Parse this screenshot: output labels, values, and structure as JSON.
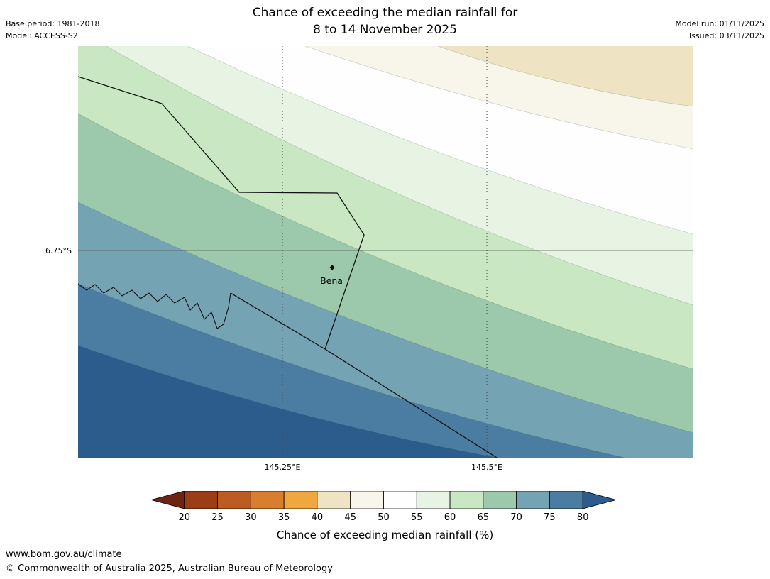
{
  "title": {
    "line1": "Chance of exceeding the median rainfall for",
    "line2": "8 to 14 November 2025"
  },
  "meta": {
    "base_period": "Base period: 1981-2018",
    "model": "Model: ACCESS-S2",
    "model_run": "Model run: 01/11/2025",
    "issued": "Issued: 03/11/2025"
  },
  "map": {
    "lat_label": "6.75°S",
    "lon_label_1": "145.25°E",
    "lon_label_2": "145.5°E",
    "place": {
      "name": "Bena"
    }
  },
  "colorbar": {
    "caption": "Chance of exceeding median rainfall (%)",
    "ticks": [
      "20",
      "25",
      "30",
      "35",
      "40",
      "45",
      "50",
      "55",
      "60",
      "65",
      "70",
      "75",
      "80"
    ],
    "segments": [
      {
        "label": "lt20",
        "color": "#6e2410"
      },
      {
        "label": "20-25",
        "color": "#9c3d16"
      },
      {
        "label": "25-30",
        "color": "#bc5b22"
      },
      {
        "label": "30-35",
        "color": "#d97e2e"
      },
      {
        "label": "35-40",
        "color": "#f0a73f"
      },
      {
        "label": "40-45",
        "color": "#eee3c3"
      },
      {
        "label": "45-50",
        "color": "#f8f5ea"
      },
      {
        "label": "50-55",
        "color": "#fdfefd"
      },
      {
        "label": "55-60",
        "color": "#e8f4e3"
      },
      {
        "label": "60-65",
        "color": "#c8e7c2"
      },
      {
        "label": "65-70",
        "color": "#9cc9ab"
      },
      {
        "label": "70-75",
        "color": "#74a3b3"
      },
      {
        "label": "75-80",
        "color": "#4a7da1"
      },
      {
        "label": "gt80",
        "color": "#2b5c8c"
      }
    ]
  },
  "footer": {
    "url": "www.bom.gov.au/climate",
    "copyright": "© Commonwealth of Australia 2025, Australian Bureau of Meteorology"
  }
}
